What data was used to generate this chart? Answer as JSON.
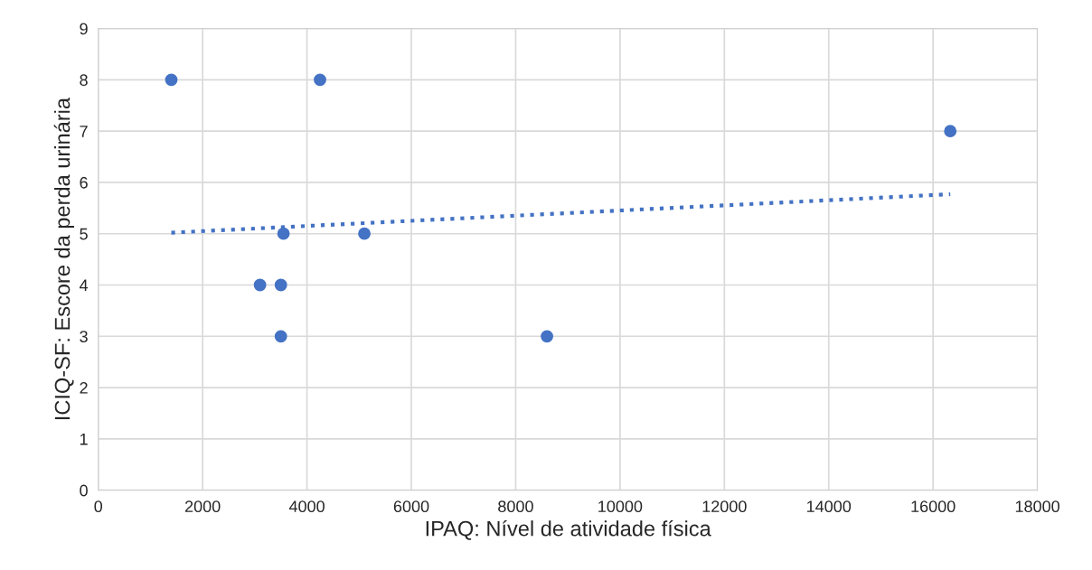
{
  "chart_data": {
    "type": "scatter",
    "xlabel": "IPAQ: Nível de atividade física",
    "ylabel": "ICIQ-SF: Escore da perda urinária",
    "xlim": [
      0,
      18000
    ],
    "xticks": [
      0,
      2000,
      4000,
      6000,
      8000,
      10000,
      12000,
      14000,
      16000,
      18000
    ],
    "ylim": [
      0,
      9
    ],
    "yticks": [
      0,
      1,
      2,
      3,
      4,
      5,
      6,
      7,
      8,
      9
    ],
    "grid": true,
    "series": [
      {
        "color": "#4472c4",
        "marker": "circle",
        "x": [
          1400,
          4250,
          3550,
          5100,
          3100,
          3500,
          3500,
          8600,
          16330
        ],
        "values": [
          8,
          8,
          5,
          5,
          4,
          4,
          3,
          3,
          7
        ]
      },
      {
        "type": "line",
        "color": "#4472c4",
        "line_style": "dotted",
        "marker": "none",
        "x": [
          1400,
          16330
        ],
        "values": [
          5.02,
          5.77
        ]
      }
    ]
  }
}
